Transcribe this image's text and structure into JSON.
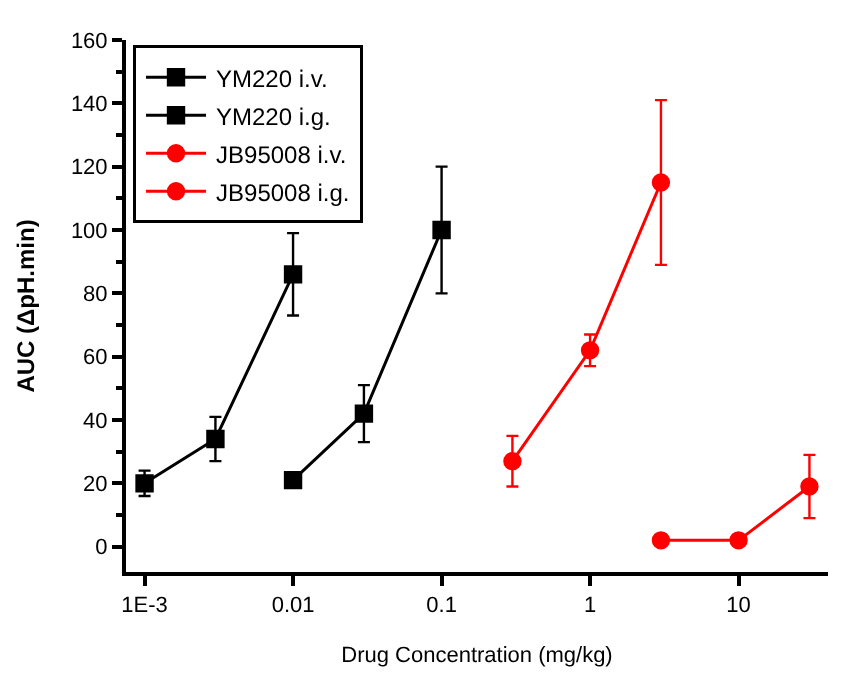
{
  "chart_data": {
    "type": "line",
    "xlabel": "Drug Concentration (mg/kg)",
    "ylabel": "AUC (ΔpH.min)",
    "log": "x",
    "xlim": [
      0.00075,
      40
    ],
    "xticks": [
      {
        "value": 0.001,
        "label": "1E-3"
      },
      0.01,
      0.1,
      1,
      10
    ],
    "ylim": [
      -8,
      160
    ],
    "yticks": [
      0,
      20,
      40,
      60,
      80,
      100,
      120,
      140,
      160
    ],
    "legend": "top left",
    "line_style": "solid",
    "series": [
      {
        "name": "YM220 i.v.",
        "color": "#000000",
        "marker": "square",
        "x": [
          0.001,
          0.003,
          0.01
        ],
        "values": [
          20,
          34,
          86
        ],
        "errors": [
          4,
          7,
          13
        ]
      },
      {
        "name": "YM220 i.g.",
        "color": "#000000",
        "marker": "square",
        "x": [
          0.01,
          0.03,
          0.1
        ],
        "values": [
          21,
          42,
          100
        ],
        "errors": [
          null,
          9,
          20
        ]
      },
      {
        "name": "JB95008 i.v.",
        "color": "#ff0000",
        "marker": "circle",
        "x": [
          0.3,
          1,
          3
        ],
        "values": [
          27,
          62,
          115
        ],
        "errors": [
          8,
          5,
          26
        ]
      },
      {
        "name": "JB95008 i.g.",
        "color": "#ff0000",
        "marker": "circle",
        "x": [
          3,
          10,
          30
        ],
        "values": [
          2,
          2,
          19
        ],
        "errors": [
          null,
          null,
          10
        ]
      }
    ]
  }
}
